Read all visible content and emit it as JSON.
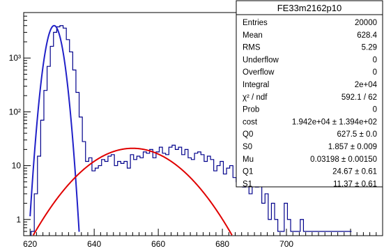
{
  "chart_data": {
    "type": "histogram",
    "title": "",
    "xlabel": "",
    "ylabel": "",
    "xlim": [
      618,
      730
    ],
    "ylim": [
      0.5,
      7000
    ],
    "y_scale": "log",
    "x_ticks": [
      "620",
      "640",
      "660",
      "680",
      "700"
    ],
    "y_ticks": [
      {
        "value": 1,
        "label": "1"
      },
      {
        "value": 10,
        "label": "10"
      },
      {
        "value": 100,
        "label": "10²"
      },
      {
        "value": 1000,
        "label": "10³"
      }
    ],
    "line_color": "#00008b",
    "fit_colors": [
      "#2020c8",
      "#e00000"
    ],
    "bins": {
      "x_start": 620.3,
      "width": 1.0,
      "counts": [
        0.6,
        3,
        15,
        70,
        250,
        700,
        1650,
        3000,
        3800,
        4000,
        3600,
        2200,
        1300,
        600,
        230,
        80,
        28,
        12,
        14,
        8,
        9,
        10,
        13,
        12,
        15,
        16,
        10,
        12,
        11,
        12,
        9,
        16,
        13,
        15,
        14,
        18,
        17,
        20,
        14,
        18,
        22,
        17,
        16,
        22,
        24,
        20,
        22,
        16,
        20,
        14,
        13,
        17,
        18,
        16,
        12,
        15,
        13,
        8,
        10,
        12,
        7,
        9,
        10,
        6,
        5,
        7,
        4,
        5,
        3,
        6,
        4,
        5,
        2,
        3,
        1,
        2,
        1,
        0.6,
        0.6,
        2,
        1,
        0.6,
        0.6,
        0.6,
        1,
        0.6,
        0.6,
        0.6,
        0.6,
        0.6,
        0.6,
        0.6,
        0.6,
        0.6,
        0.6,
        0.6,
        0.6,
        0.6,
        0.6,
        0.6
      ]
    },
    "fits": {
      "gauss": {
        "peak": 4000,
        "mean": 627.5,
        "sigma": 1.857,
        "x_range": [
          620,
          636
        ]
      },
      "broad": {
        "peak": 21,
        "mean": 652,
        "sigma": 11.37,
        "x_range": [
          620,
          686
        ]
      }
    },
    "stats_box": {
      "title": "FE33m2162p10",
      "rows": [
        {
          "label": "Entries",
          "value": "20000"
        },
        {
          "label": "Mean",
          "value": "628.4"
        },
        {
          "label": "RMS",
          "value": "5.29"
        },
        {
          "label": "Underflow",
          "value": "0"
        },
        {
          "label": "Overflow",
          "value": "0"
        },
        {
          "label": "Integral",
          "value": "2e+04"
        },
        {
          "label": "χ² / ndf",
          "value": "592.1 / 62"
        },
        {
          "label": "Prob",
          "value": "0"
        },
        {
          "label": "cost",
          "value": "1.942e+04 ± 1.394e+02"
        },
        {
          "label": "Q0",
          "value": "627.5 ± 0.0"
        },
        {
          "label": "S0",
          "value": "1.857 ± 0.009"
        },
        {
          "label": "Mu",
          "value": "0.03198 ± 0.00150"
        },
        {
          "label": "Q1",
          "value": "24.67 ± 0.61"
        },
        {
          "label": "S1",
          "value": "11.37 ± 0.61"
        }
      ]
    }
  }
}
